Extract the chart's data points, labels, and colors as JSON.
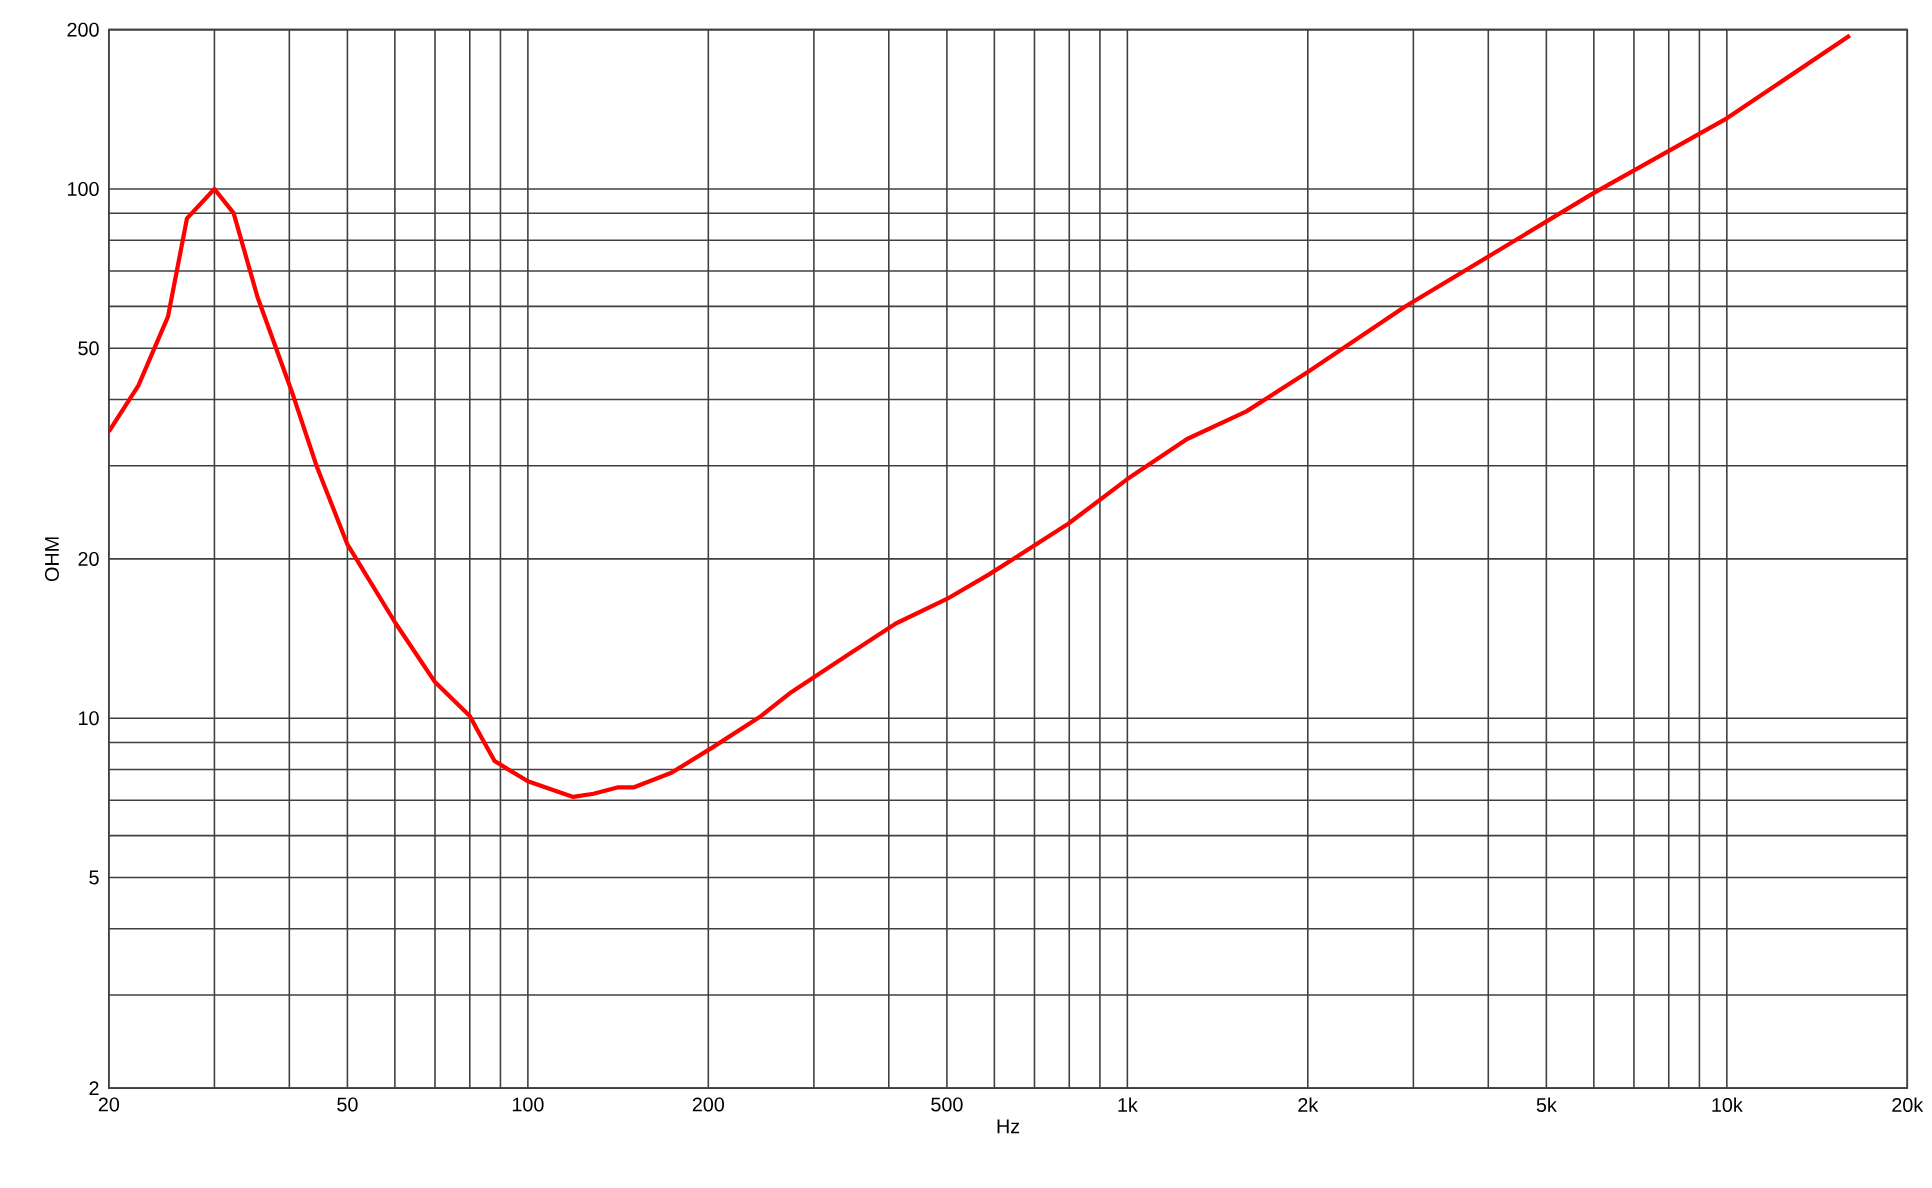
{
  "chart_data": {
    "type": "line",
    "xlabel": "Hz",
    "ylabel": "OHM",
    "log": "xy",
    "grid": true,
    "color": "#ff0000",
    "xlim": [
      20,
      20000
    ],
    "ylim": [
      2,
      200
    ],
    "xticks": [
      20,
      {
        "value": 30,
        "label": null
      },
      {
        "value": 40,
        "label": null
      },
      50,
      {
        "value": 60,
        "label": null
      },
      {
        "value": 70,
        "label": null
      },
      {
        "value": 80,
        "label": null
      },
      {
        "value": 90,
        "label": null
      },
      100,
      200,
      {
        "value": 300,
        "label": null
      },
      {
        "value": 400,
        "label": null
      },
      500,
      {
        "value": 600,
        "label": null
      },
      {
        "value": 700,
        "label": null
      },
      {
        "value": 800,
        "label": null
      },
      {
        "value": 900,
        "label": null
      },
      {
        "value": 1000,
        "label": "1k"
      },
      {
        "value": 2000,
        "label": "2k"
      },
      {
        "value": 3000,
        "label": null
      },
      {
        "value": 4000,
        "label": null
      },
      {
        "value": 5000,
        "label": "5k"
      },
      {
        "value": 6000,
        "label": null
      },
      {
        "value": 7000,
        "label": null
      },
      {
        "value": 8000,
        "label": null
      },
      {
        "value": 9000,
        "label": null
      },
      {
        "value": 10000,
        "label": "10k"
      },
      {
        "value": 20000,
        "label": "20k"
      }
    ],
    "yticks": [
      2,
      {
        "value": 3,
        "label": null
      },
      {
        "value": 4,
        "label": null
      },
      5,
      {
        "value": 6,
        "label": null
      },
      {
        "value": 7,
        "label": null
      },
      {
        "value": 8,
        "label": null
      },
      {
        "value": 9,
        "label": null
      },
      10,
      20,
      {
        "value": 30,
        "label": null
      },
      {
        "value": 40,
        "label": null
      },
      50,
      {
        "value": 60,
        "label": null
      },
      {
        "value": 70,
        "label": null
      },
      {
        "value": 80,
        "label": null
      },
      {
        "value": 90,
        "label": null
      },
      100,
      200
    ],
    "x": [
      20,
      22.4,
      25.1,
      27,
      30,
      32.3,
      35.4,
      40.6,
      44.4,
      50,
      60.2,
      70,
      80,
      82.8,
      88,
      100,
      119,
      128.7,
      141,
      150,
      174,
      203,
      245,
      275,
      346,
      411,
      500,
      588,
      797,
      1000,
      1258,
      1580,
      2000,
      2903,
      4245,
      5972,
      10000,
      16040
    ],
    "values": [
      34.8,
      42.5,
      57.4,
      88,
      100,
      90,
      62.5,
      40.7,
      30,
      21.3,
      15.1,
      11.7,
      10.1,
      9.4,
      8.3,
      7.6,
      7.1,
      7.2,
      7.4,
      7.4,
      7.9,
      8.8,
      10.1,
      11.2,
      13.3,
      15.1,
      16.8,
      18.7,
      23.3,
      28.3,
      33.7,
      38,
      45.1,
      59.9,
      77.6,
      98,
      136,
      195
    ]
  }
}
